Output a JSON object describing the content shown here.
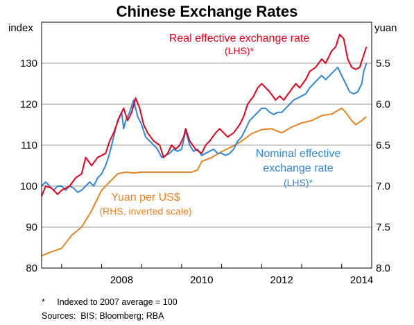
{
  "chart_data": {
    "type": "line",
    "title": "Chinese Exchange Rates",
    "left_axis": {
      "unit": "index",
      "ylim": [
        80,
        140
      ],
      "ticks": [
        "80",
        "90",
        "100",
        "110",
        "120",
        "130"
      ],
      "tick_values": [
        80,
        90,
        100,
        110,
        120,
        130
      ]
    },
    "right_axis": {
      "unit": "yuan",
      "inverted": true,
      "ylim": [
        8.0,
        5.0
      ],
      "ticks": [
        "8.0",
        "7.5",
        "7.0",
        "6.5",
        "6.0",
        "5.5"
      ],
      "tick_values": [
        8.0,
        7.5,
        7.0,
        6.5,
        6.0,
        5.5
      ]
    },
    "x_axis": {
      "xlim": [
        2006.5,
        2014.75
      ],
      "ticks": [
        "2008",
        "2010",
        "2012",
        "2014"
      ],
      "tick_values": [
        2008,
        2010,
        2012,
        2014
      ],
      "year_marks": [
        2007,
        2008,
        2009,
        2010,
        2011,
        2012,
        2013,
        2014
      ]
    },
    "grid": true,
    "series": [
      {
        "name": "Real effective exchange rate",
        "label_lines": [
          "Real effective exchange rate",
          "(LHS)*"
        ],
        "axis": "left",
        "color": "#e2001a",
        "points": [
          [
            2006.5,
            97.5
          ],
          [
            2006.6,
            100
          ],
          [
            2006.75,
            99.5
          ],
          [
            2006.9,
            98
          ],
          [
            2007.0,
            99
          ],
          [
            2007.2,
            100
          ],
          [
            2007.35,
            102
          ],
          [
            2007.5,
            103
          ],
          [
            2007.6,
            107
          ],
          [
            2007.75,
            105
          ],
          [
            2007.9,
            107
          ],
          [
            2008.1,
            108
          ],
          [
            2008.2,
            111
          ],
          [
            2008.3,
            113
          ],
          [
            2008.45,
            117
          ],
          [
            2008.55,
            119
          ],
          [
            2008.65,
            116
          ],
          [
            2008.75,
            118
          ],
          [
            2008.85,
            121.5
          ],
          [
            2008.95,
            119
          ],
          [
            2009.05,
            115
          ],
          [
            2009.15,
            113
          ],
          [
            2009.3,
            111
          ],
          [
            2009.45,
            110
          ],
          [
            2009.55,
            107
          ],
          [
            2009.65,
            108
          ],
          [
            2009.75,
            110
          ],
          [
            2009.85,
            109
          ],
          [
            2009.95,
            110
          ],
          [
            2010.05,
            112
          ],
          [
            2010.1,
            114
          ],
          [
            2010.2,
            111
          ],
          [
            2010.35,
            109
          ],
          [
            2010.5,
            108
          ],
          [
            2010.6,
            110
          ],
          [
            2010.7,
            111
          ],
          [
            2010.85,
            113
          ],
          [
            2010.95,
            114
          ],
          [
            2011.05,
            113
          ],
          [
            2011.15,
            112
          ],
          [
            2011.3,
            113
          ],
          [
            2011.45,
            115
          ],
          [
            2011.55,
            117
          ],
          [
            2011.65,
            120
          ],
          [
            2011.8,
            122
          ],
          [
            2011.9,
            124
          ],
          [
            2012.0,
            125
          ],
          [
            2012.1,
            124
          ],
          [
            2012.2,
            123
          ],
          [
            2012.35,
            121
          ],
          [
            2012.45,
            122
          ],
          [
            2012.55,
            121
          ],
          [
            2012.7,
            123
          ],
          [
            2012.85,
            125
          ],
          [
            2012.95,
            124
          ],
          [
            2013.1,
            126
          ],
          [
            2013.2,
            128
          ],
          [
            2013.35,
            129
          ],
          [
            2013.5,
            131
          ],
          [
            2013.6,
            130
          ],
          [
            2013.75,
            133
          ],
          [
            2013.85,
            134
          ],
          [
            2013.95,
            137
          ],
          [
            2014.05,
            136
          ],
          [
            2014.15,
            131
          ],
          [
            2014.25,
            129
          ],
          [
            2014.35,
            128.5
          ],
          [
            2014.45,
            129
          ],
          [
            2014.55,
            132
          ],
          [
            2014.62,
            134
          ]
        ]
      },
      {
        "name": "Nominal effective exchange rate",
        "label_lines": [
          "Nominal effective",
          "exchange rate",
          "(LHS)*"
        ],
        "axis": "left",
        "color": "#2e86d9",
        "points": [
          [
            2006.5,
            100
          ],
          [
            2006.6,
            101
          ],
          [
            2006.7,
            100
          ],
          [
            2006.8,
            99
          ],
          [
            2006.9,
            100
          ],
          [
            2007.0,
            100
          ],
          [
            2007.1,
            99
          ],
          [
            2007.2,
            100
          ],
          [
            2007.3,
            99.5
          ],
          [
            2007.4,
            98.5
          ],
          [
            2007.5,
            99
          ],
          [
            2007.6,
            100
          ],
          [
            2007.7,
            101
          ],
          [
            2007.8,
            100
          ],
          [
            2007.9,
            102
          ],
          [
            2008.0,
            103
          ],
          [
            2008.1,
            105
          ],
          [
            2008.2,
            108
          ],
          [
            2008.3,
            112
          ],
          [
            2008.4,
            116
          ],
          [
            2008.5,
            118
          ],
          [
            2008.55,
            114
          ],
          [
            2008.6,
            116
          ],
          [
            2008.7,
            118
          ],
          [
            2008.8,
            121
          ],
          [
            2008.9,
            117
          ],
          [
            2009.0,
            115
          ],
          [
            2009.1,
            112
          ],
          [
            2009.2,
            111
          ],
          [
            2009.3,
            110
          ],
          [
            2009.4,
            109
          ],
          [
            2009.5,
            107
          ],
          [
            2009.6,
            107.5
          ],
          [
            2009.7,
            108
          ],
          [
            2009.8,
            109
          ],
          [
            2009.9,
            108.5
          ],
          [
            2010.0,
            109
          ],
          [
            2010.1,
            113.5
          ],
          [
            2010.2,
            110
          ],
          [
            2010.3,
            108.5
          ],
          [
            2010.4,
            109
          ],
          [
            2010.5,
            107.5
          ],
          [
            2010.6,
            108
          ],
          [
            2010.7,
            108.5
          ],
          [
            2010.8,
            109
          ],
          [
            2010.9,
            108
          ],
          [
            2011.0,
            108
          ],
          [
            2011.1,
            107.5
          ],
          [
            2011.2,
            108
          ],
          [
            2011.3,
            109
          ],
          [
            2011.4,
            111
          ],
          [
            2011.5,
            112
          ],
          [
            2011.6,
            114
          ],
          [
            2011.7,
            116
          ],
          [
            2011.8,
            117
          ],
          [
            2011.9,
            118
          ],
          [
            2012.0,
            119
          ],
          [
            2012.1,
            119
          ],
          [
            2012.2,
            118
          ],
          [
            2012.3,
            117.5
          ],
          [
            2012.4,
            118
          ],
          [
            2012.5,
            118
          ],
          [
            2012.6,
            119
          ],
          [
            2012.7,
            120
          ],
          [
            2012.8,
            121
          ],
          [
            2012.9,
            121.5
          ],
          [
            2013.0,
            122
          ],
          [
            2013.1,
            122.5
          ],
          [
            2013.2,
            124
          ],
          [
            2013.3,
            125
          ],
          [
            2013.4,
            126
          ],
          [
            2013.5,
            127
          ],
          [
            2013.6,
            126
          ],
          [
            2013.7,
            127
          ],
          [
            2013.8,
            128
          ],
          [
            2013.9,
            129
          ],
          [
            2014.0,
            127
          ],
          [
            2014.1,
            125
          ],
          [
            2014.2,
            123
          ],
          [
            2014.3,
            122.5
          ],
          [
            2014.4,
            123
          ],
          [
            2014.5,
            125
          ],
          [
            2014.55,
            128
          ],
          [
            2014.62,
            130
          ]
        ]
      },
      {
        "name": "Yuan per US$",
        "label_lines": [
          "Yuan per US$",
          "(RHS, inverted scale)"
        ],
        "axis": "right",
        "color": "#e8821e",
        "points": [
          [
            2006.5,
            7.85
          ],
          [
            2006.75,
            7.8
          ],
          [
            2007.0,
            7.76
          ],
          [
            2007.25,
            7.6
          ],
          [
            2007.5,
            7.5
          ],
          [
            2007.75,
            7.3
          ],
          [
            2008.0,
            7.05
          ],
          [
            2008.2,
            6.95
          ],
          [
            2008.4,
            6.85
          ],
          [
            2008.6,
            6.83
          ],
          [
            2008.8,
            6.84
          ],
          [
            2009.0,
            6.83
          ],
          [
            2009.25,
            6.83
          ],
          [
            2009.5,
            6.83
          ],
          [
            2009.75,
            6.83
          ],
          [
            2010.0,
            6.83
          ],
          [
            2010.25,
            6.83
          ],
          [
            2010.4,
            6.8
          ],
          [
            2010.5,
            6.7
          ],
          [
            2010.75,
            6.65
          ],
          [
            2011.0,
            6.58
          ],
          [
            2011.25,
            6.52
          ],
          [
            2011.5,
            6.45
          ],
          [
            2011.75,
            6.36
          ],
          [
            2012.0,
            6.31
          ],
          [
            2012.25,
            6.3
          ],
          [
            2012.5,
            6.35
          ],
          [
            2012.75,
            6.28
          ],
          [
            2013.0,
            6.23
          ],
          [
            2013.25,
            6.2
          ],
          [
            2013.5,
            6.14
          ],
          [
            2013.75,
            6.12
          ],
          [
            2014.0,
            6.05
          ],
          [
            2014.1,
            6.1
          ],
          [
            2014.25,
            6.2
          ],
          [
            2014.35,
            6.25
          ],
          [
            2014.5,
            6.2
          ],
          [
            2014.62,
            6.15
          ]
        ]
      }
    ],
    "notes": [
      "*",
      "Indexed to 2007 average = 100"
    ],
    "sources": "Sources:  BIS; Bloomberg; RBA"
  }
}
